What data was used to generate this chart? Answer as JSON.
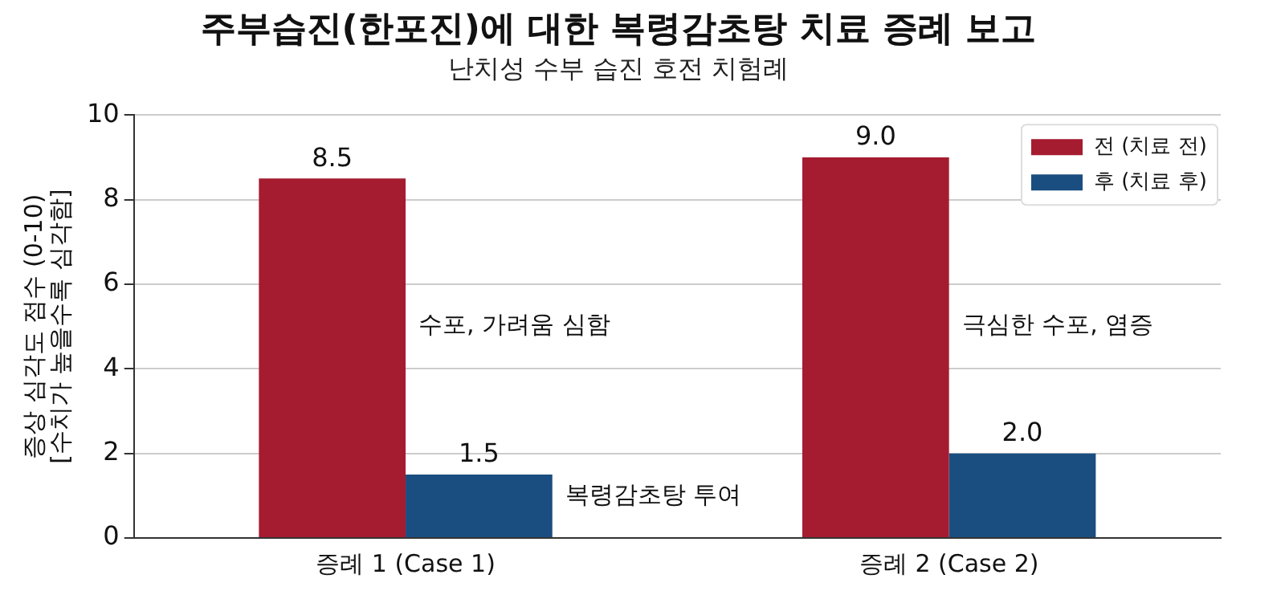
{
  "chart_data": {
    "type": "bar",
    "title": "주부습진(한포진)에 대한 복령감초탕 치료 증례 보고",
    "subtitle": "난치성 수부 습진 호전 치험례",
    "ylabel": "증상 심각도 점수 (0-10)\n[수치가 높을수록 심각함]",
    "categories": [
      "증례 1 (Case 1)",
      "증례 2 (Case 2)"
    ],
    "series": [
      {
        "name": "전 (치료 전)",
        "color": "#a51c30",
        "values": [
          8.5,
          9.0
        ],
        "value_labels": [
          "8.5",
          "9.0"
        ]
      },
      {
        "name": "후 (치료 후)",
        "color": "#1a4e80",
        "values": [
          1.5,
          2.0
        ],
        "value_labels": [
          "1.5",
          "2.0"
        ]
      }
    ],
    "ylim": [
      0,
      10
    ],
    "yticks": [
      0,
      2,
      4,
      6,
      8,
      10
    ],
    "grid": "y",
    "legend": "top right",
    "annotations": [
      {
        "text": "수포, 가려움 심함",
        "x": "증례 1 (Case 1)",
        "y": 5
      },
      "복령감초탕 투여",
      {
        "text": "극심한 수포, 염증",
        "x": "증례 2 (Case 2)",
        "y": 5
      }
    ]
  }
}
